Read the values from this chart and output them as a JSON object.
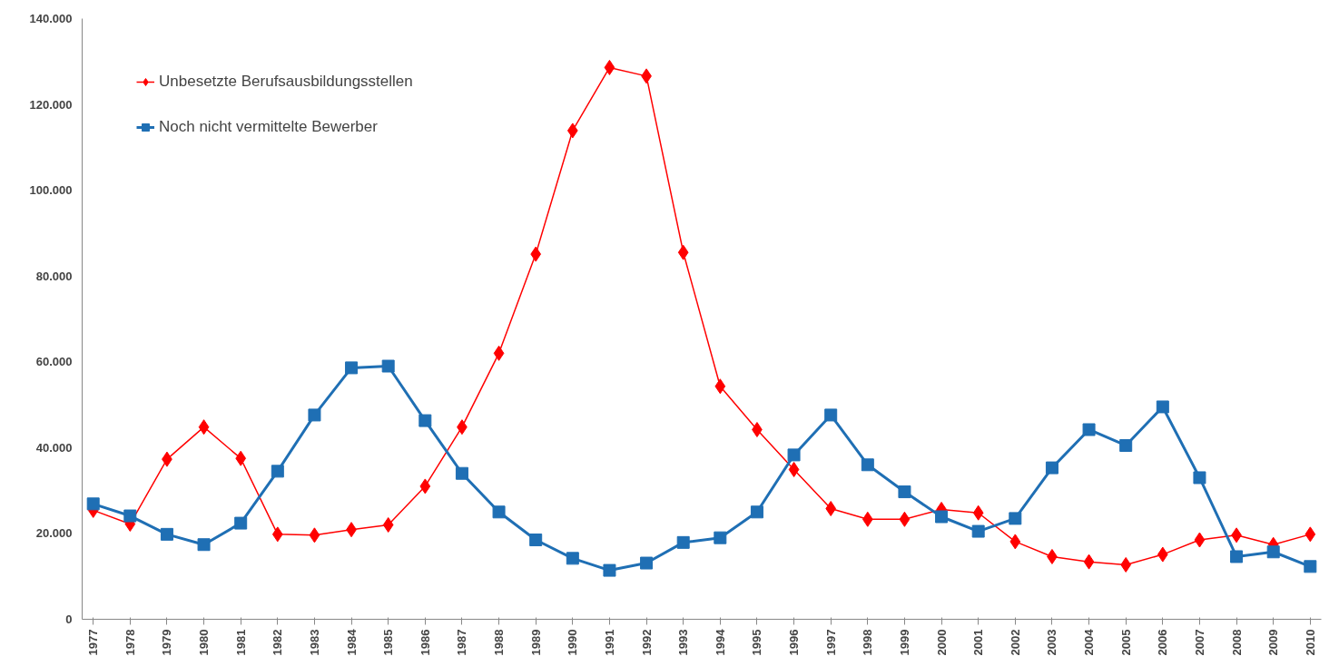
{
  "chart_data": {
    "type": "line",
    "categories": [
      "1977",
      "1978",
      "1979",
      "1980",
      "1981",
      "1982",
      "1983",
      "1984",
      "1985",
      "1986",
      "1987",
      "1988",
      "1989",
      "1990",
      "1991",
      "1992",
      "1993",
      "1994",
      "1995",
      "1996",
      "1997",
      "1998",
      "1999",
      "2000",
      "2001",
      "2002",
      "2003",
      "2004",
      "2005",
      "2006",
      "2007",
      "2008",
      "2009",
      "2010"
    ],
    "series": [
      {
        "name": "Unbesetzte Berufsausbildungsstellen",
        "color": "#ff0000",
        "marker": "diamond",
        "values": [
          25400,
          22200,
          37300,
          44800,
          37500,
          19800,
          19600,
          20900,
          22000,
          31000,
          44800,
          62000,
          85100,
          113900,
          128600,
          126600,
          85500,
          54300,
          44200,
          34900,
          25800,
          23300,
          23300,
          25600,
          24800,
          18100,
          14600,
          13400,
          12700,
          15100,
          18500,
          19600,
          17400,
          19800
        ]
      },
      {
        "name": "Noch nicht vermittelte Bewerber",
        "color": "#1f6fb4",
        "marker": "square",
        "values": [
          26900,
          24100,
          19800,
          17400,
          22400,
          34500,
          47600,
          58600,
          59000,
          46300,
          34000,
          25000,
          18500,
          14200,
          11400,
          13100,
          17900,
          19000,
          25000,
          38300,
          47600,
          36000,
          29700,
          23900,
          20500,
          23500,
          35300,
          44200,
          40500,
          49500,
          33000,
          14600,
          15700,
          12300
        ]
      }
    ],
    "ylim": [
      0,
      140000
    ],
    "yticks": [
      0,
      {
        "value": 20000,
        "label": "20.000"
      },
      {
        "value": 40000,
        "label": "40.000"
      },
      {
        "value": 60000,
        "label": "60.000"
      },
      {
        "value": 80000,
        "label": "80.000"
      },
      {
        "value": 100000,
        "label": "100.000"
      },
      {
        "value": 120000,
        "label": "120.000"
      },
      {
        "value": 140000,
        "label": "140.000"
      }
    ],
    "grid": false,
    "legend": "top left",
    "line_style": "solid"
  }
}
